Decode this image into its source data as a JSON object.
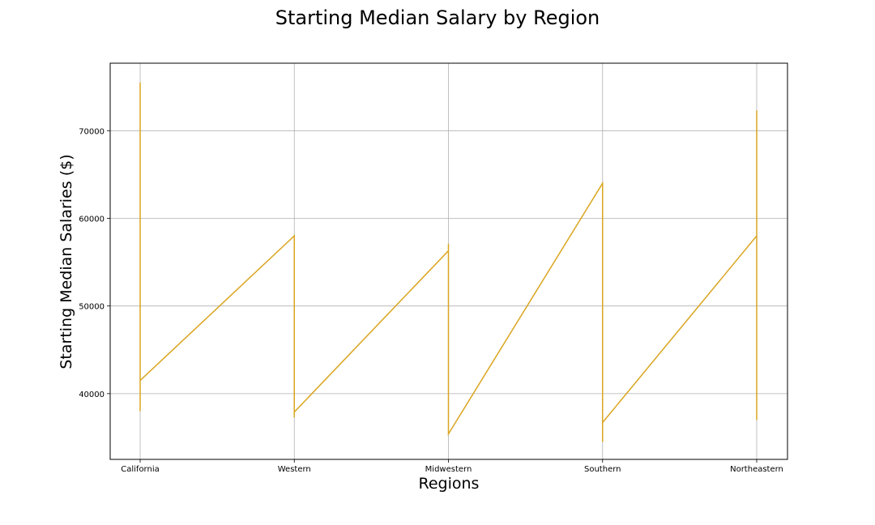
{
  "chart_data": {
    "type": "line",
    "title": "Starting Median Salary by Region",
    "xlabel": "Regions",
    "ylabel": "Starting Median Salaries ($)",
    "categories": [
      "California",
      "Western",
      "Midwestern",
      "Southern",
      "Northeastern"
    ],
    "y_ticks": [
      40000,
      50000,
      60000,
      70000
    ],
    "y_tick_labels": [
      "40000",
      "50000",
      "60000",
      "70000"
    ],
    "ylim": [
      32500,
      77700
    ],
    "grid": true,
    "line_color": "#DAA520",
    "series": [
      {
        "points": [
          {
            "x": 0,
            "y": 70800
          },
          {
            "x": 0,
            "y": 75500
          },
          {
            "x": 0,
            "y": 72000
          },
          {
            "x": 0,
            "y": 66000
          },
          {
            "x": 0,
            "y": 60000
          },
          {
            "x": 0,
            "y": 52000
          },
          {
            "x": 0,
            "y": 45000
          },
          {
            "x": 0,
            "y": 38000
          },
          {
            "x": 0,
            "y": 41500
          },
          {
            "x": 1,
            "y": 58000
          },
          {
            "x": 1,
            "y": 52000
          },
          {
            "x": 1,
            "y": 45000
          },
          {
            "x": 1,
            "y": 37300
          },
          {
            "x": 1,
            "y": 37900
          },
          {
            "x": 2,
            "y": 56300
          },
          {
            "x": 2,
            "y": 57100
          },
          {
            "x": 2,
            "y": 50000
          },
          {
            "x": 2,
            "y": 42000
          },
          {
            "x": 2,
            "y": 35400
          },
          {
            "x": 3,
            "y": 64000
          },
          {
            "x": 3,
            "y": 55000
          },
          {
            "x": 3,
            "y": 45000
          },
          {
            "x": 3,
            "y": 34500
          },
          {
            "x": 3,
            "y": 36700
          },
          {
            "x": 4,
            "y": 58000
          },
          {
            "x": 4,
            "y": 72300
          },
          {
            "x": 4,
            "y": 65000
          },
          {
            "x": 4,
            "y": 55000
          },
          {
            "x": 4,
            "y": 44000
          },
          {
            "x": 4,
            "y": 37000
          }
        ]
      }
    ]
  }
}
